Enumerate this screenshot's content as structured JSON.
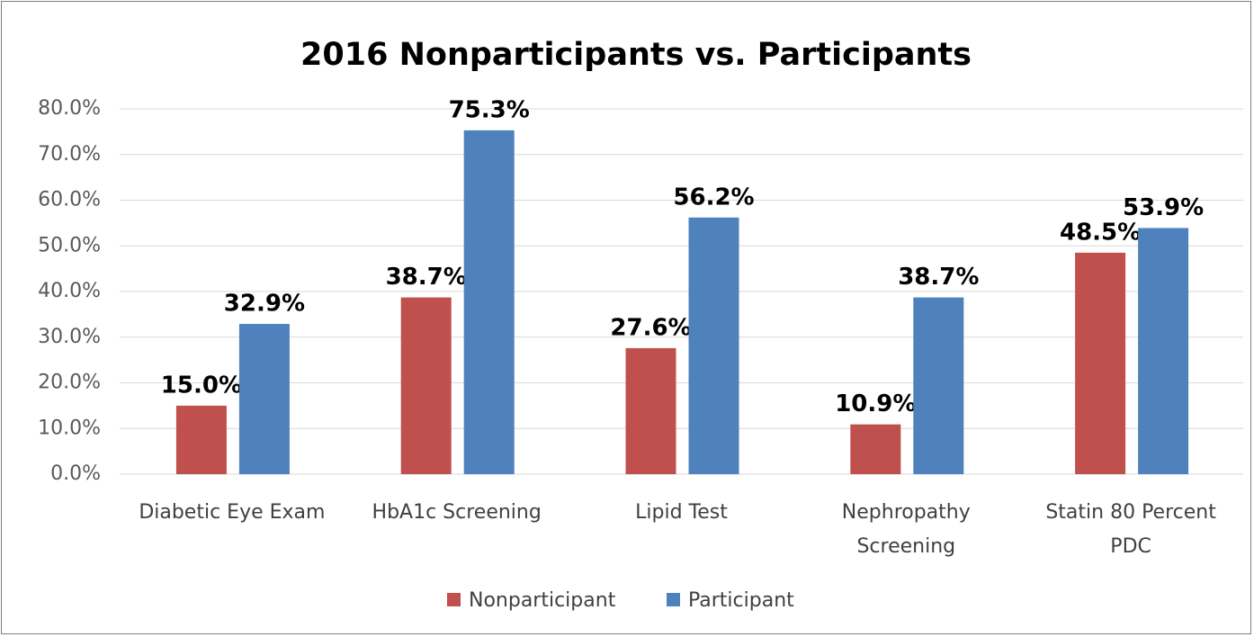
{
  "chart_data": {
    "type": "bar",
    "title": "2016 Nonparticipants vs. Participants",
    "categories": [
      "Diabetic Eye Exam",
      "HbA1c Screening",
      "Lipid Test",
      "Nephropathy Screening",
      "Statin 80 Percent PDC"
    ],
    "series": [
      {
        "name": "Nonparticipant",
        "color": "#c0504d",
        "values": [
          15.0,
          38.7,
          27.6,
          10.9,
          48.5
        ],
        "value_labels": [
          "15.0%",
          "38.7%",
          "27.6%",
          "10.9%",
          "48.5%"
        ]
      },
      {
        "name": "Participant",
        "color": "#4f81bd",
        "values": [
          32.9,
          75.3,
          56.2,
          38.7,
          53.9
        ],
        "value_labels": [
          "32.9%",
          "75.3%",
          "56.2%",
          "38.7%",
          "53.9%"
        ]
      }
    ],
    "ylim": [
      0,
      80
    ],
    "yticks": [
      {
        "value": 0,
        "label": "0.0%"
      },
      {
        "value": 10,
        "label": "10.0%"
      },
      {
        "value": 20,
        "label": "20.0%"
      },
      {
        "value": 30,
        "label": "30.0%"
      },
      {
        "value": 40,
        "label": "40.0%"
      },
      {
        "value": 50,
        "label": "50.0%"
      },
      {
        "value": 60,
        "label": "60.0%"
      },
      {
        "value": 70,
        "label": "70.0%"
      },
      {
        "value": 80,
        "label": "80.0%"
      }
    ],
    "grid": true,
    "legend": "bottom"
  }
}
